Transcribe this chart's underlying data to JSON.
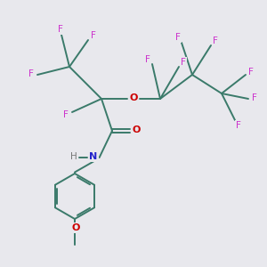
{
  "bg_color": "#e8e8ed",
  "bond_color": "#3a7a6a",
  "F_color": "#cc33cc",
  "O_color": "#cc0000",
  "N_color": "#2222cc",
  "H_color": "#777777",
  "lw": 1.4,
  "fig_size": [
    3.0,
    3.0
  ],
  "dpi": 100,
  "xlim": [
    0,
    10
  ],
  "ylim": [
    0,
    10
  ]
}
